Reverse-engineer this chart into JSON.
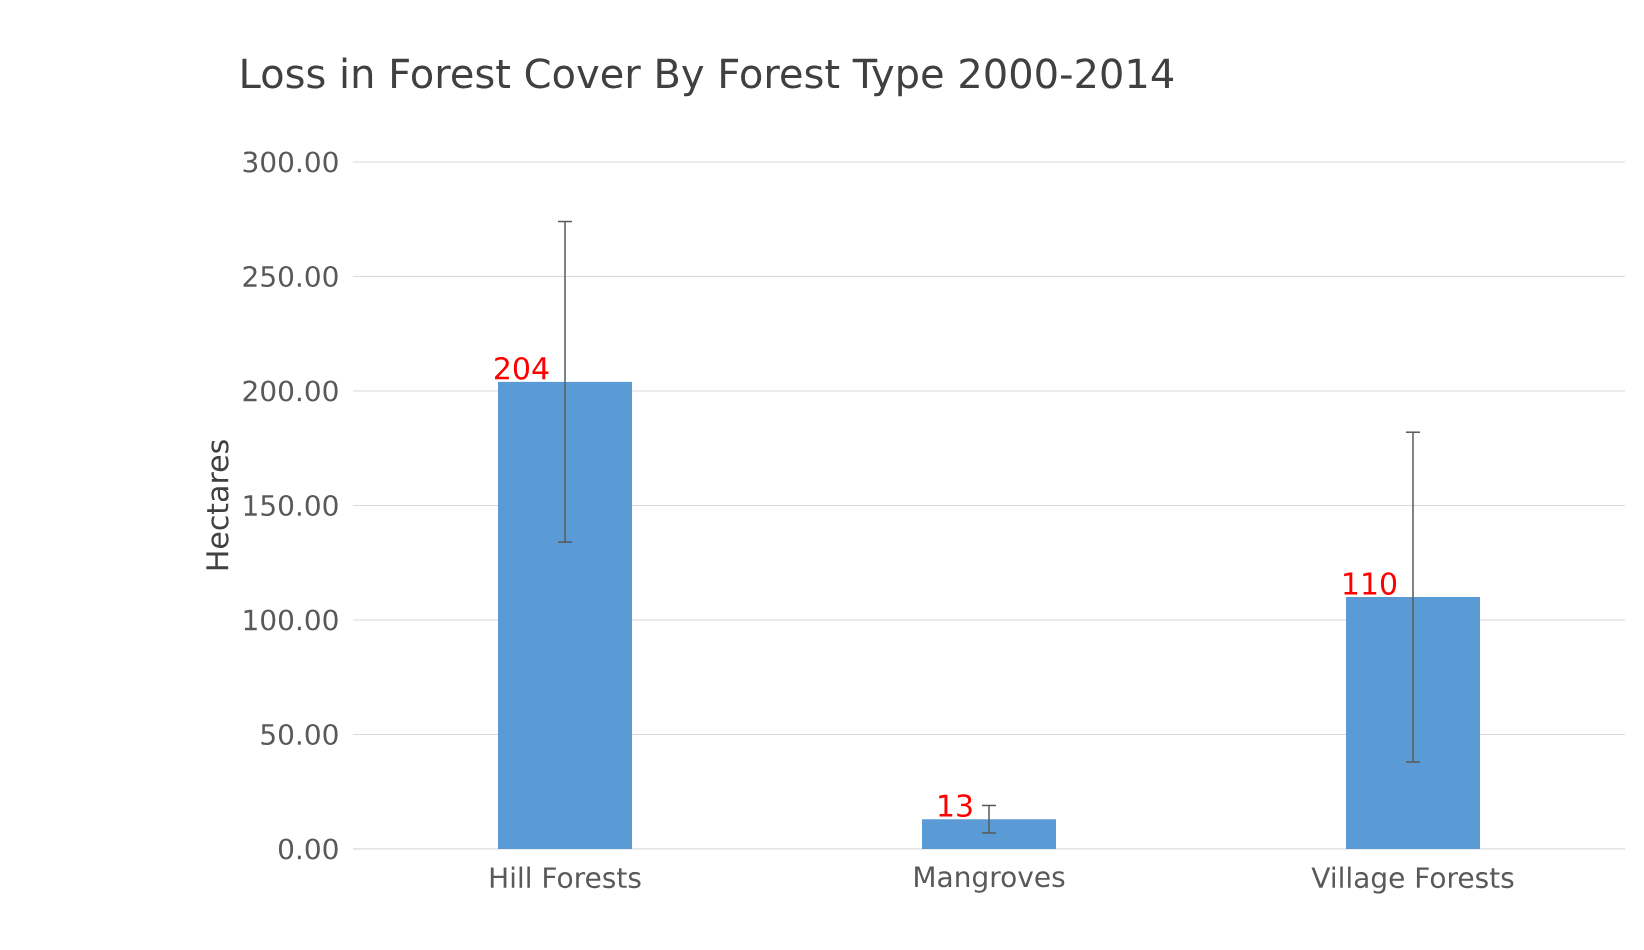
{
  "chart_data": {
    "type": "bar",
    "title": "Loss in Forest Cover By Forest Type 2000-2014",
    "ylabel": "Hectares",
    "categories": [
      "Hill Forests",
      "Mangroves",
      "Village Forests"
    ],
    "values": [
      204,
      13,
      110
    ],
    "errors": [
      70,
      6,
      72
    ],
    "color": "#5b9bd5",
    "ylim": [
      0,
      300
    ],
    "yticks": [
      {
        "value": 0,
        "label": "0.00"
      },
      {
        "value": 50,
        "label": "50.00"
      },
      {
        "value": 100,
        "label": "100.00"
      },
      {
        "value": 150,
        "label": "150.00"
      },
      {
        "value": 200,
        "label": "200.00"
      },
      {
        "value": 250,
        "label": "250.00"
      },
      {
        "value": 300,
        "label": "300.00"
      }
    ],
    "grid": "y",
    "data_labels": true
  }
}
